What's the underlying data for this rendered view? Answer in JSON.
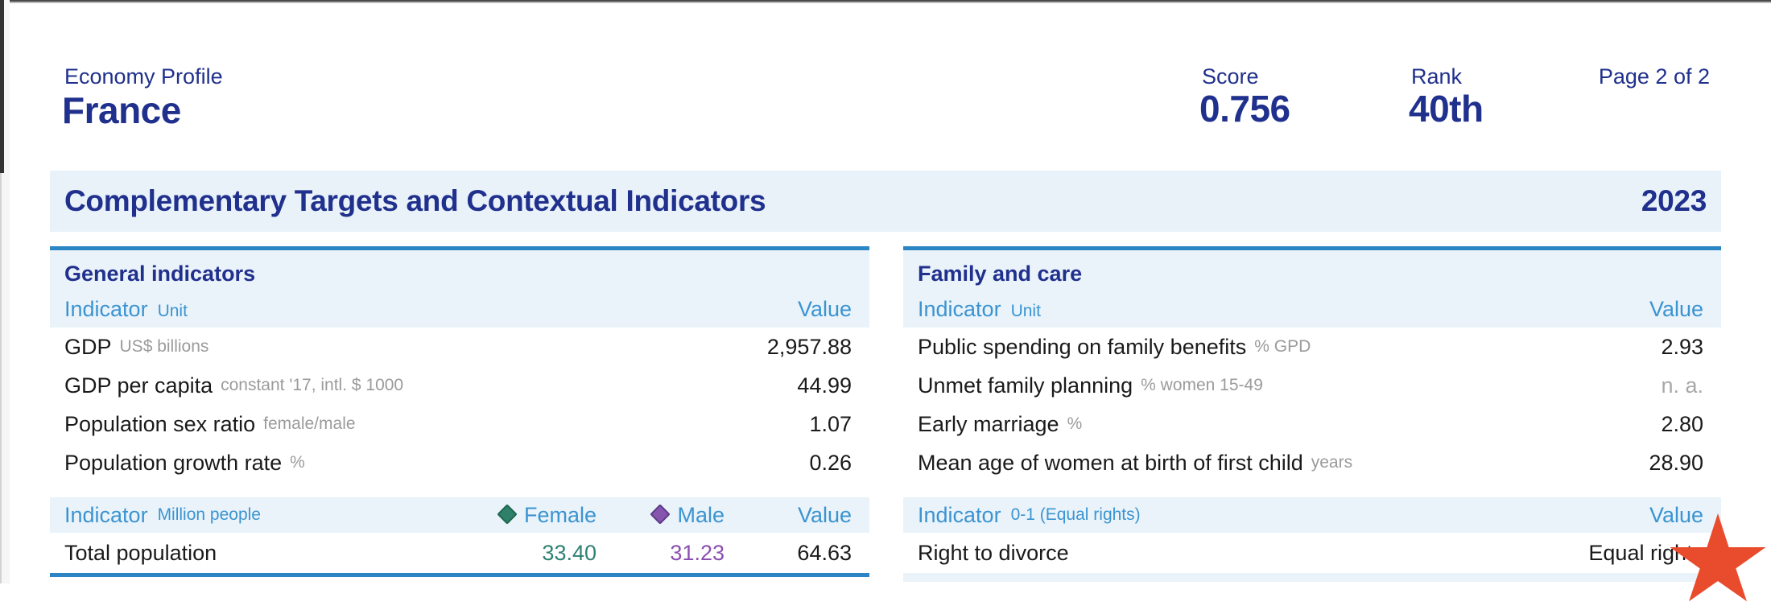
{
  "header": {
    "profile_label": "Economy Profile",
    "country": "France",
    "score_label": "Score",
    "score_value": "0.756",
    "rank_label": "Rank",
    "rank_value": "40th",
    "page_label": "Page 2 of 2"
  },
  "banner": {
    "title": "Complementary Targets and Contextual Indicators",
    "year": "2023"
  },
  "tables": {
    "general": {
      "title": "General indicators",
      "header": {
        "indicator": "Indicator",
        "unit": "Unit",
        "value": "Value"
      },
      "rows": [
        {
          "name": "GDP",
          "unit": "US$ billions",
          "value": "2,957.88"
        },
        {
          "name": "GDP per capita",
          "unit": "constant '17, intl. $ 1000",
          "value": "44.99"
        },
        {
          "name": "Population sex ratio",
          "unit": "female/male",
          "value": "1.07"
        },
        {
          "name": "Population growth rate",
          "unit": "%",
          "value": "0.26"
        }
      ],
      "subheader": {
        "indicator": "Indicator",
        "unit": "Million people",
        "female": "Female",
        "male": "Male",
        "value": "Value"
      },
      "population_row": {
        "name": "Total population",
        "female": "33.40",
        "male": "31.23",
        "value": "64.63"
      }
    },
    "family": {
      "title": "Family and care",
      "header": {
        "indicator": "Indicator",
        "unit": "Unit",
        "value": "Value"
      },
      "rows": [
        {
          "name": "Public spending on family benefits",
          "unit": "% GPD",
          "value": "2.93"
        },
        {
          "name": "Unmet family planning",
          "unit": "% women 15-49",
          "value": "n. a."
        },
        {
          "name": "Early marriage",
          "unit": "%",
          "value": "2.80"
        },
        {
          "name": "Mean age of women at birth of first child",
          "unit": "years",
          "value": "28.90"
        }
      ],
      "subheader": {
        "indicator": "Indicator",
        "unit": "0-1 (Equal rights)",
        "value": "Value"
      },
      "divorce_row": {
        "name": "Right to divorce",
        "value": "Equal rights"
      }
    }
  },
  "icons": {
    "female_diamond": "diamond",
    "male_diamond": "diamond",
    "star_marker": "star"
  },
  "colors": {
    "navy": "#20308d",
    "light_blue_text": "#3b94d1",
    "table_border_blue": "#2c86c5",
    "band_background": "#eaf3fa",
    "banner_background": "#e9f1f9",
    "female_accent": "#2e8273",
    "male_accent": "#8a4fb0",
    "star_red": "#e94b2d",
    "unit_gray": "#9b9b9b"
  }
}
